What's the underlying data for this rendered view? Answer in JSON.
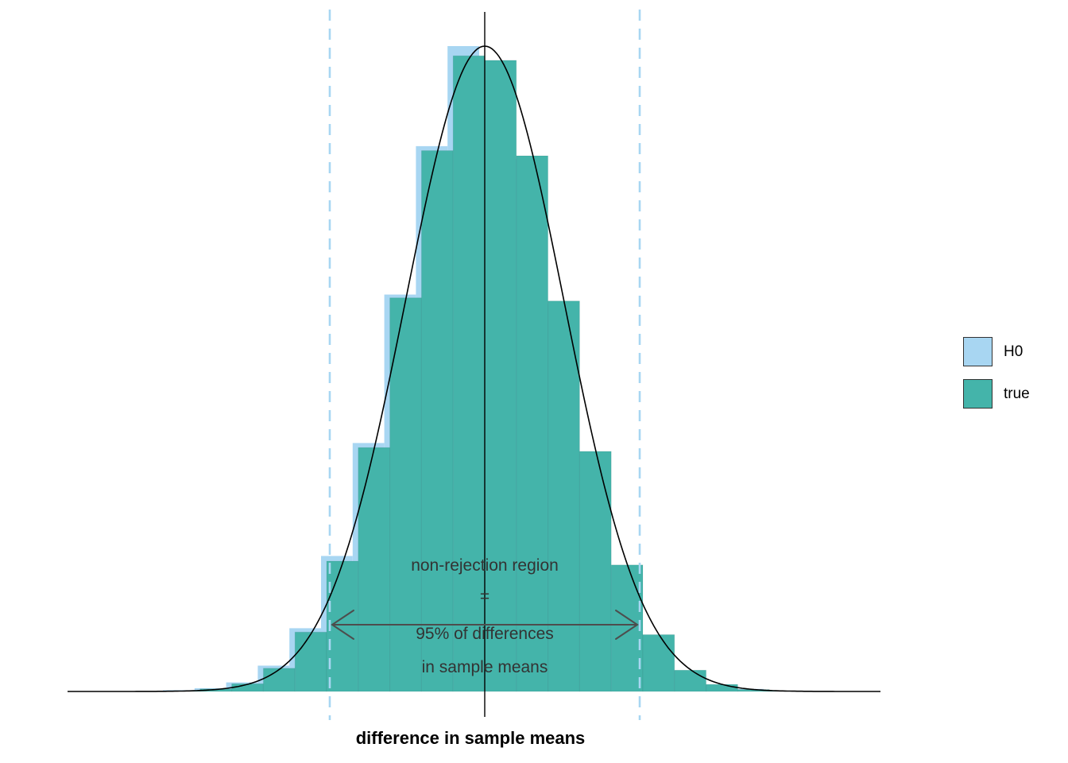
{
  "chart_data": {
    "type": "histogram",
    "title": "",
    "xlabel": "difference in sample means",
    "ylabel": "",
    "x_axis_ticks": [],
    "y_axis_ticks": [],
    "grid": false,
    "bin_width_sigma": 0.4,
    "bin_start_sigma": -4.0,
    "series": [
      {
        "name": "H0",
        "color": "#a8d6f2",
        "offset_sigma": -0.07,
        "heights": [
          0.002,
          0.005,
          0.014,
          0.04,
          0.098,
          0.21,
          0.385,
          0.615,
          0.845,
          1.0,
          0.975,
          0.825,
          0.6,
          0.368,
          0.193,
          0.086,
          0.032,
          0.01,
          0.004,
          0.001
        ]
      },
      {
        "name": "true",
        "color": "#44b4aa",
        "offset_sigma": 0,
        "heights": [
          0.001,
          0.004,
          0.012,
          0.036,
          0.092,
          0.202,
          0.378,
          0.61,
          0.838,
          0.985,
          0.978,
          0.83,
          0.605,
          0.372,
          0.196,
          0.088,
          0.033,
          0.011,
          0.003,
          0.001
        ]
      }
    ],
    "density_curve": {
      "color": "#000000",
      "mean_sigma": 0,
      "sd_sigma": 1
    },
    "center_line_sigma": 0,
    "critical_lines_sigma": [
      -1.96,
      1.96
    ],
    "critical_line_color": "#a8d6f2",
    "critical_line_style": "dashed",
    "annotation": {
      "line1": "non-rejection region",
      "line2": "=",
      "line3": "95% of differences",
      "line4": "in sample means"
    },
    "arrow": {
      "from_sigma": -1.93,
      "to_sigma": 1.93,
      "color": "#4d4d4d"
    },
    "legend": [
      {
        "label": "H0",
        "color": "#a8d6f2"
      },
      {
        "label": "true",
        "color": "#44b4aa"
      }
    ],
    "legend_position": "right"
  }
}
